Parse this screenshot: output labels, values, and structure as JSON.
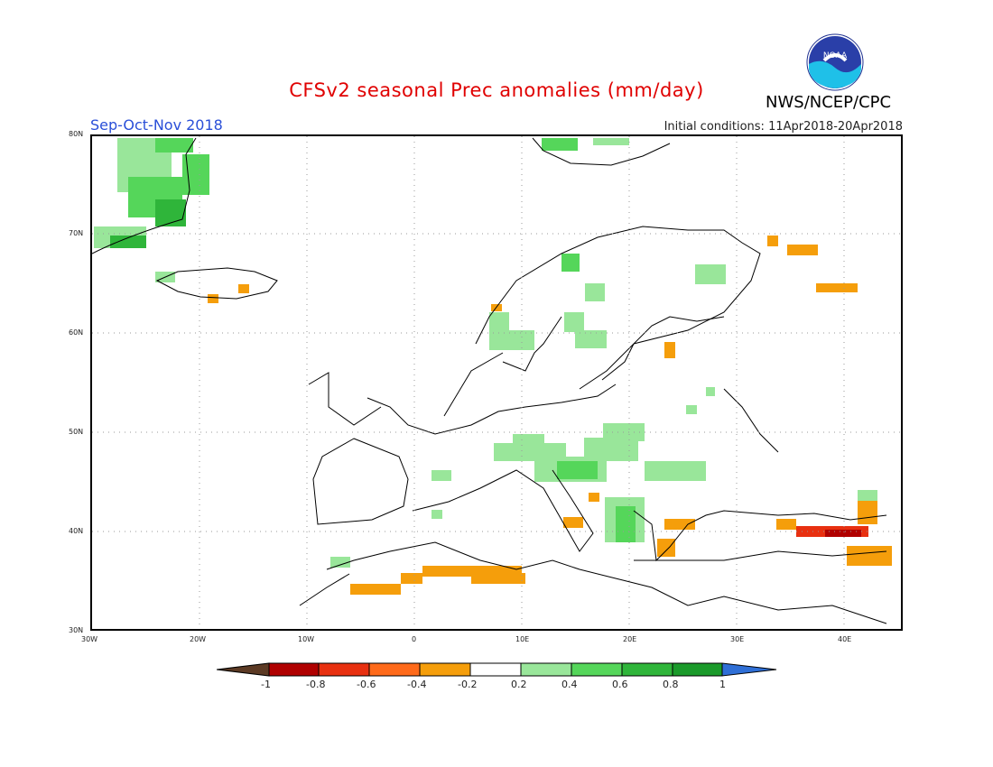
{
  "header": {
    "title": "CFSv2 seasonal Prec anomalies (mm/day)",
    "season": "Sep-Oct-Nov 2018",
    "initial_conditions": "Initial conditions: 11Apr2018-20Apr2018",
    "agency": "NWS/NCEP/CPC",
    "logo_text": "NOAA"
  },
  "axes": {
    "lon_labels": [
      "30W",
      "20W",
      "10W",
      "0",
      "10E",
      "20E",
      "30E",
      "40E"
    ],
    "lat_labels": [
      "80N",
      "70N",
      "60N",
      "50N",
      "40N",
      "30N"
    ]
  },
  "colorbar": {
    "labels": [
      "-1",
      "-0.8",
      "-0.6",
      "-0.4",
      "-0.2",
      "0.2",
      "0.4",
      "0.6",
      "0.8",
      "1"
    ],
    "colors": [
      "#5c3a24",
      "#b00000",
      "#e83010",
      "#ff6a1a",
      "#f59e0b",
      "#ffffff",
      "#99e69a",
      "#55d65a",
      "#2fb53a",
      "#1a9a2a",
      "#2f6fd6"
    ]
  },
  "colors": {
    "title": "#e00000",
    "season": "#2a4fd8",
    "light_green": "#99e69a",
    "mid_green": "#55d65a",
    "dark_green": "#2fb53a",
    "orange": "#f59e0b",
    "red": "#e83010",
    "dark_red": "#b00000"
  }
}
